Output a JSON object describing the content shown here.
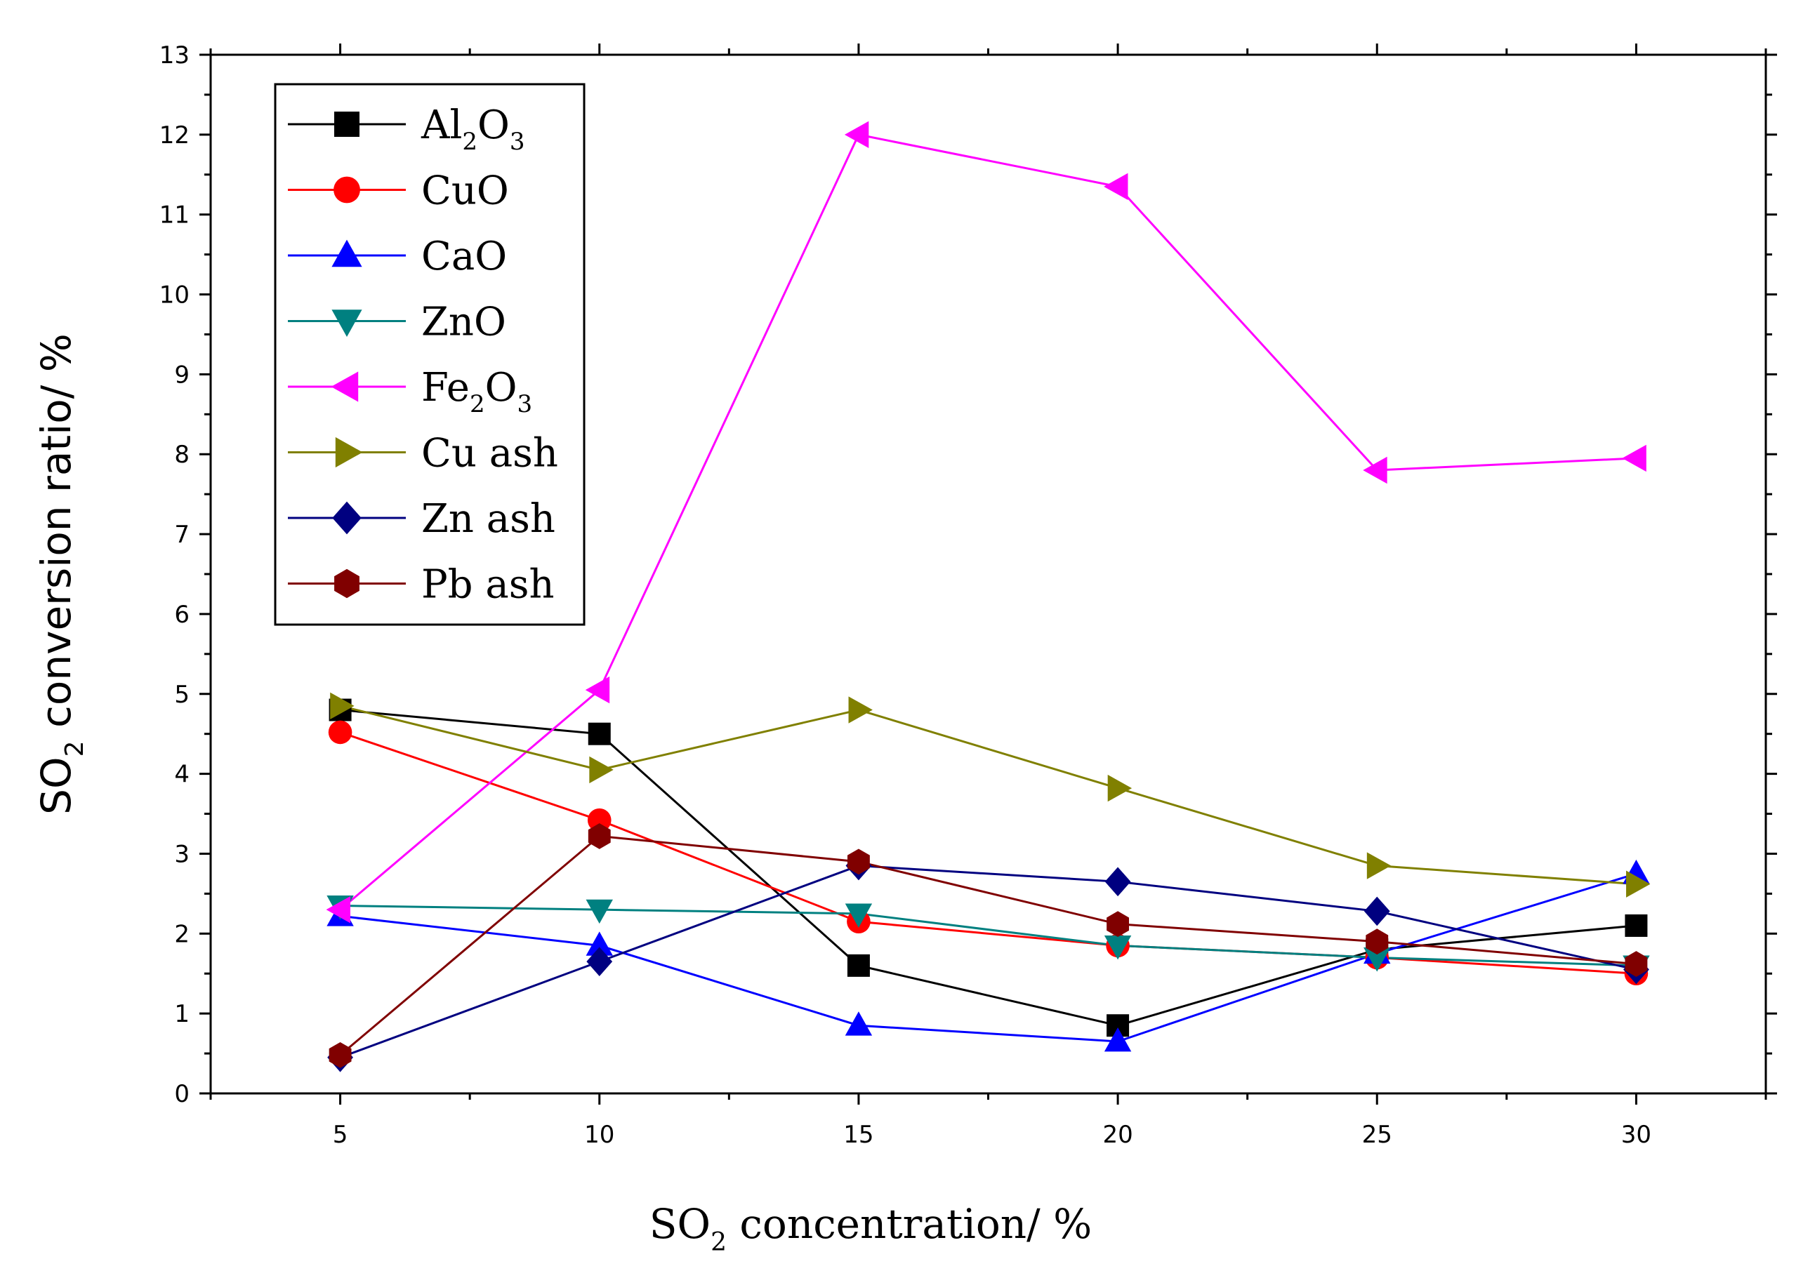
{
  "chart_data": {
    "type": "line",
    "xlabel": {
      "main": "SO",
      "sub": "2",
      "rest": " concentration/ %"
    },
    "ylabel": {
      "main": "SO",
      "sub": "2",
      "rest": " conversion ratio/ %"
    },
    "xlim": [
      2.5,
      32.5
    ],
    "ylim": [
      0,
      13
    ],
    "xticks": [
      5,
      10,
      15,
      20,
      25,
      30
    ],
    "yticks": [
      0,
      1,
      2,
      3,
      4,
      5,
      6,
      7,
      8,
      9,
      10,
      11,
      12,
      13
    ],
    "x": [
      5,
      10,
      15,
      20,
      25,
      30
    ],
    "legend_position": "top-left",
    "series": [
      {
        "key": "al2o3",
        "name": "Al2O3",
        "label": {
          "parts": [
            [
              "Al",
              ""
            ],
            [
              "2",
              "sub"
            ],
            [
              "O",
              ""
            ],
            [
              "3",
              "sub"
            ]
          ]
        },
        "color": "#000000",
        "marker": "square",
        "values": [
          4.8,
          4.5,
          1.6,
          0.85,
          1.8,
          2.1
        ]
      },
      {
        "key": "cuo",
        "name": "CuO",
        "label": {
          "parts": [
            [
              "CuO",
              ""
            ]
          ]
        },
        "color": "#ff0000",
        "marker": "circle",
        "values": [
          4.52,
          3.42,
          2.15,
          1.85,
          1.7,
          1.5
        ]
      },
      {
        "key": "cao",
        "name": "CaO",
        "label": {
          "parts": [
            [
              "CaO",
              ""
            ]
          ]
        },
        "color": "#0000ff",
        "marker": "triangle-up",
        "values": [
          2.22,
          1.85,
          0.85,
          0.65,
          1.75,
          2.75
        ]
      },
      {
        "key": "zno",
        "name": "ZnO",
        "label": {
          "parts": [
            [
              "ZnO",
              ""
            ]
          ]
        },
        "color": "#008080",
        "marker": "triangle-down",
        "values": [
          2.35,
          2.3,
          2.25,
          1.85,
          1.7,
          1.6
        ]
      },
      {
        "key": "fe2o3",
        "name": "Fe2O3",
        "label": {
          "parts": [
            [
              "Fe",
              ""
            ],
            [
              "2",
              "sub"
            ],
            [
              "O",
              ""
            ],
            [
              "3",
              "sub"
            ]
          ]
        },
        "color": "#ff00ff",
        "marker": "triangle-left",
        "values": [
          2.3,
          5.05,
          12.0,
          11.35,
          7.8,
          7.95
        ]
      },
      {
        "key": "cuash",
        "name": "Cu ash",
        "label": {
          "parts": [
            [
              "Cu ash",
              ""
            ]
          ]
        },
        "color": "#808000",
        "marker": "triangle-right",
        "values": [
          4.85,
          4.05,
          4.8,
          3.82,
          2.85,
          2.62
        ]
      },
      {
        "key": "znash",
        "name": "Zn ash",
        "label": {
          "parts": [
            [
              "Zn ash",
              ""
            ]
          ]
        },
        "color": "#000080",
        "marker": "diamond",
        "values": [
          0.45,
          1.65,
          2.85,
          2.65,
          2.28,
          1.55
        ]
      },
      {
        "key": "pbash",
        "name": "Pb ash",
        "label": {
          "parts": [
            [
              "Pb ash",
              ""
            ]
          ]
        },
        "color": "#800000",
        "marker": "hexagon",
        "values": [
          0.48,
          3.22,
          2.9,
          2.12,
          1.9,
          1.62
        ]
      }
    ]
  }
}
